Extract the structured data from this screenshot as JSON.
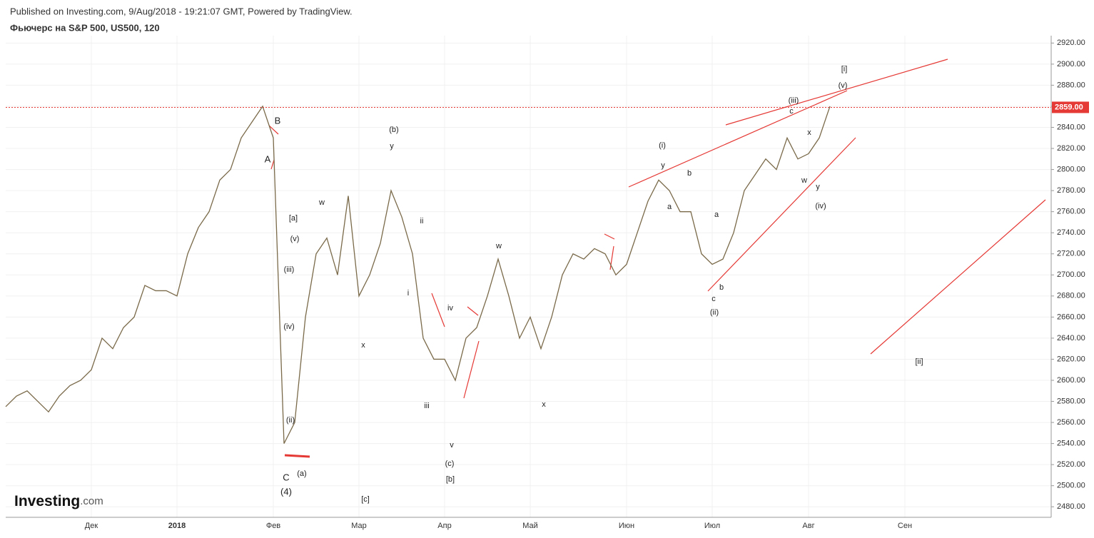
{
  "header": {
    "published": "Published on Investing.com, 9/Aug/2018 - 19:21:07 GMT, Powered by TradingView.",
    "symbol": "Фьючерс на S&P 500, US500, 120"
  },
  "logo": {
    "name": "Investing",
    "suffix": ".com"
  },
  "chart_data": {
    "type": "line",
    "categories": [
      null,
      null,
      null,
      null,
      null,
      null,
      null,
      null,
      "Дек",
      null,
      null,
      null,
      null,
      null,
      null,
      null,
      "2018",
      null,
      null,
      null,
      null,
      null,
      null,
      null,
      null,
      "Фев",
      null,
      null,
      null,
      null,
      null,
      null,
      null,
      "Мар",
      null,
      null,
      null,
      null,
      null,
      null,
      null,
      "Апр",
      null,
      null,
      null,
      null,
      null,
      null,
      null,
      "Май",
      null,
      null,
      null,
      null,
      null,
      null,
      null,
      null,
      "Июн",
      null,
      null,
      null,
      null,
      null,
      null,
      null,
      "Июл",
      null,
      null,
      null,
      null,
      null,
      null,
      null,
      null,
      "Авг",
      null,
      null,
      null,
      null,
      null,
      null,
      null,
      null,
      "Сен",
      null,
      null,
      null,
      null,
      null,
      null,
      null,
      null,
      null,
      null,
      null,
      null,
      null
    ],
    "series": [
      {
        "color": "#7a6a4a",
        "values": [
          2575,
          2585,
          2590,
          2580,
          2570,
          2585,
          2595,
          2600,
          2610,
          2640,
          2630,
          2650,
          2660,
          2690,
          2685,
          2685,
          2680,
          2720,
          2745,
          2760,
          2790,
          2800,
          2830,
          2845,
          2860,
          2830,
          2540,
          2560,
          2660,
          2720,
          2735,
          2700,
          2775,
          2680,
          2700,
          2730,
          2780,
          2755,
          2720,
          2640,
          2620,
          2620,
          2600,
          2640,
          2650,
          2680,
          2715,
          2680,
          2640,
          2660,
          2630,
          2660,
          2700,
          2720,
          2715,
          2725,
          2720,
          2700,
          2710,
          2740,
          2770,
          2790,
          2780,
          2760,
          2760,
          2720,
          2710,
          2715,
          2740,
          2780,
          2795,
          2810,
          2800,
          2830,
          2810,
          2815,
          2830,
          2860,
          null,
          null,
          null,
          null,
          null,
          null,
          null,
          null,
          null,
          null,
          null,
          null,
          null,
          null,
          null,
          null,
          null,
          null,
          null,
          null
        ]
      }
    ],
    "ylim": [
      2470,
      2927
    ],
    "yticks": [
      {
        "value": 2480,
        "label": "2480.00"
      },
      {
        "value": 2500,
        "label": "2500.00"
      },
      {
        "value": 2520,
        "label": "2520.00"
      },
      {
        "value": 2540,
        "label": "2540.00"
      },
      {
        "value": 2560,
        "label": "2560.00"
      },
      {
        "value": 2580,
        "label": "2580.00"
      },
      {
        "value": 2600,
        "label": "2600.00"
      },
      {
        "value": 2620,
        "label": "2620.00"
      },
      {
        "value": 2640,
        "label": "2640.00"
      },
      {
        "value": 2660,
        "label": "2660.00"
      },
      {
        "value": 2680,
        "label": "2680.00"
      },
      {
        "value": 2700,
        "label": "2700.00"
      },
      {
        "value": 2720,
        "label": "2720.00"
      },
      {
        "value": 2740,
        "label": "2740.00"
      },
      {
        "value": 2760,
        "label": "2760.00"
      },
      {
        "value": 2780,
        "label": "2780.00"
      },
      {
        "value": 2800,
        "label": "2800.00"
      },
      {
        "value": 2820,
        "label": "2820.00"
      },
      {
        "value": 2840,
        "label": "2840.00"
      },
      {
        "value": 2860,
        "label": "2860.00"
      },
      {
        "value": 2880,
        "label": "2880.00"
      },
      {
        "value": 2900,
        "label": "2900.00"
      },
      {
        "value": 2920,
        "label": "2920.00"
      }
    ],
    "last_price": {
      "value": 2859,
      "label": "2859.00",
      "color": "#e53935"
    },
    "grid": true,
    "annotations": [
      "B",
      "A",
      "C",
      "(4)",
      "[a]",
      "(v)",
      "(iii)",
      "(iv)",
      "(ii)",
      "(a)",
      "w",
      "x",
      "[c]",
      "(b)",
      "y",
      "ii",
      "i",
      "iii",
      "iv",
      "v",
      "(c)",
      "[b]",
      "w",
      "x",
      "(i)",
      "y",
      "a",
      "b",
      "a",
      "b",
      "c",
      "(ii)",
      "(iii)",
      "c",
      "x",
      "w",
      "y",
      "(iv)",
      "(v)",
      "[i]",
      "[ii]"
    ]
  }
}
